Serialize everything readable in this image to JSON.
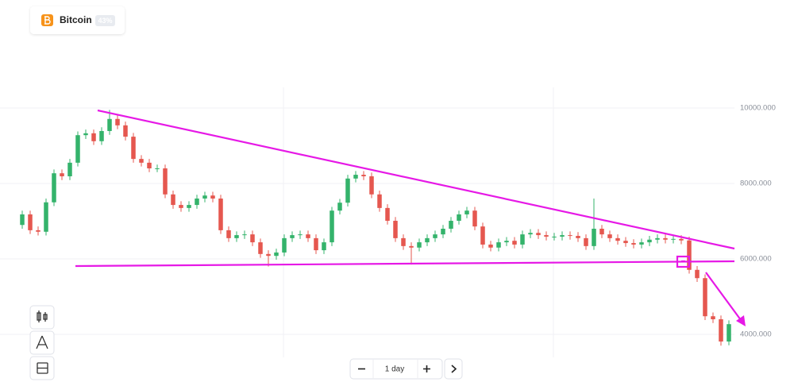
{
  "header": {
    "asset": "Bitcoin",
    "badge": "43%"
  },
  "controls": {
    "interval": "1 day"
  },
  "chart_data": {
    "type": "candlestick",
    "open": [
      6900,
      7180,
      6760,
      6720,
      7500,
      8270,
      8190,
      8550,
      9280,
      9330,
      9120,
      9390,
      9710,
      9540,
      9240,
      8650,
      8550,
      8400,
      8400,
      7710,
      7430,
      7350,
      7430,
      7600,
      7680,
      7600,
      6760,
      6550,
      6630,
      6650,
      6440,
      6130,
      6080,
      6170,
      6550,
      6630,
      6650,
      6550,
      6230,
      6440,
      7280,
      7490,
      8130,
      8230,
      8190,
      7710,
      7350,
      7010,
      6550,
      6340,
      6300,
      6440,
      6550,
      6650,
      6800,
      7010,
      7180,
      7280,
      6860,
      6380,
      6300,
      6440,
      6480,
      6380,
      6650,
      6690,
      6630,
      6590,
      6590,
      6630,
      6610,
      6550,
      6340,
      6800,
      6650,
      6550,
      6480,
      6420,
      6380,
      6440,
      6510,
      6550,
      6510,
      6530,
      6490,
      5710,
      5490,
      4480,
      4400,
      3810
    ],
    "high": [
      7280,
      7280,
      6860,
      7600,
      8370,
      8370,
      8650,
      9380,
      9430,
      9430,
      9490,
      9950,
      9810,
      9640,
      9340,
      8750,
      8650,
      8500,
      8500,
      7810,
      7530,
      7530,
      7700,
      7780,
      7780,
      7700,
      6860,
      6730,
      6750,
      6750,
      6540,
      6230,
      6270,
      6650,
      6730,
      6750,
      6750,
      6650,
      6540,
      7380,
      7590,
      8230,
      8330,
      8330,
      8290,
      7810,
      7450,
      7110,
      6650,
      6440,
      6540,
      6650,
      6750,
      6900,
      7110,
      7280,
      7380,
      7380,
      6960,
      6480,
      6540,
      6580,
      6580,
      6750,
      6790,
      6790,
      6730,
      6690,
      6730,
      6730,
      6710,
      6650,
      7600,
      6900,
      6750,
      6650,
      6580,
      6520,
      6540,
      6610,
      6650,
      6650,
      6630,
      6630,
      6590,
      5810,
      5590,
      4580,
      4500,
      4370
    ],
    "low": [
      6800,
      6660,
      6620,
      6620,
      7400,
      8090,
      8090,
      8450,
      9180,
      9020,
      9020,
      9290,
      9440,
      9140,
      8550,
      8450,
      8300,
      8300,
      7610,
      7330,
      7250,
      7250,
      7330,
      7500,
      7500,
      6660,
      6450,
      6450,
      6530,
      6340,
      6030,
      5800,
      5980,
      6070,
      6450,
      6530,
      6450,
      6130,
      6130,
      6340,
      7180,
      7390,
      8030,
      8090,
      7610,
      7250,
      6910,
      6450,
      6240,
      5850,
      6200,
      6340,
      6450,
      6550,
      6700,
      6910,
      7080,
      6760,
      6280,
      6200,
      6200,
      6340,
      6280,
      6280,
      6550,
      6530,
      6490,
      6490,
      6490,
      6510,
      6450,
      6240,
      6240,
      6550,
      6450,
      6380,
      6320,
      6280,
      6280,
      6340,
      6410,
      6410,
      6410,
      6390,
      5610,
      5390,
      4380,
      4300,
      3700,
      3710
    ],
    "close": [
      7180,
      6760,
      6720,
      7500,
      8270,
      8190,
      8550,
      9280,
      9330,
      9120,
      9390,
      9710,
      9540,
      9240,
      8650,
      8550,
      8400,
      8400,
      7710,
      7430,
      7350,
      7430,
      7600,
      7680,
      7600,
      6760,
      6550,
      6630,
      6650,
      6440,
      6130,
      6080,
      6170,
      6550,
      6630,
      6650,
      6550,
      6230,
      6440,
      7280,
      7490,
      8130,
      8230,
      8190,
      7710,
      7350,
      7010,
      6550,
      6340,
      6300,
      6440,
      6550,
      6650,
      6800,
      7010,
      7180,
      7280,
      6860,
      6380,
      6300,
      6440,
      6480,
      6380,
      6650,
      6690,
      6630,
      6590,
      6590,
      6630,
      6610,
      6550,
      6340,
      6800,
      6650,
      6550,
      6480,
      6420,
      6380,
      6440,
      6510,
      6550,
      6510,
      6530,
      6490,
      5710,
      5490,
      4480,
      4400,
      3810,
      4270
    ],
    "ylim": [
      3400,
      12000
    ],
    "yticks": [
      {
        "value": 10000,
        "label": "10000.000"
      },
      {
        "value": 8000,
        "label": "8000.000"
      },
      {
        "value": 6000,
        "label": "6000.000"
      },
      {
        "value": 4000,
        "label": "4000.000"
      }
    ],
    "grid": true,
    "up_color": "#34b36b",
    "down_color": "#e5574f"
  }
}
